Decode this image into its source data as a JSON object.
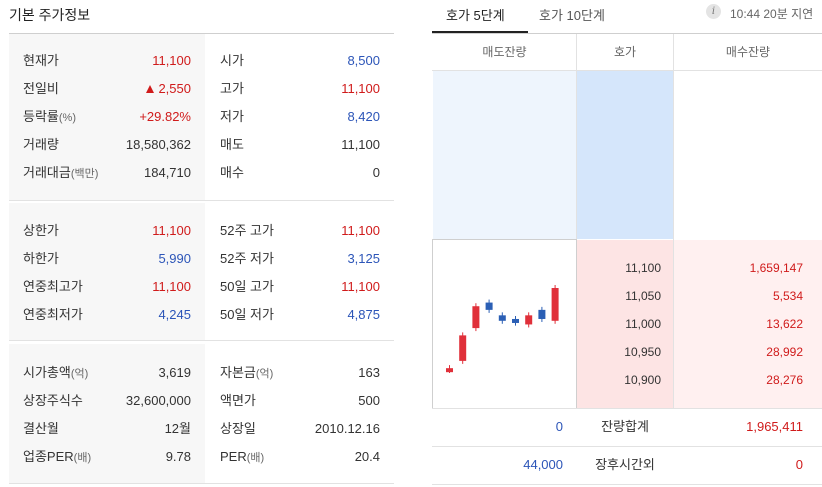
{
  "left": {
    "title": "기본 주가정보",
    "section1": [
      {
        "label": "현재가",
        "value": "11,100",
        "color": "red",
        "label2": "시가",
        "value2": "8,500",
        "color2": "blue"
      },
      {
        "label": "전일비",
        "value": "2,550",
        "color": "red",
        "arrow": "up",
        "label2": "고가",
        "value2": "11,100",
        "color2": "red"
      },
      {
        "label": "등락률",
        "unit": "(%)",
        "value": "+29.82%",
        "color": "red",
        "label2": "저가",
        "value2": "8,420",
        "color2": "blue"
      },
      {
        "label": "거래량",
        "value": "18,580,362",
        "color": "dark",
        "label2": "매도",
        "value2": "11,100",
        "color2": "dark"
      },
      {
        "label": "거래대금",
        "unit": "(백만)",
        "value": "184,710",
        "color": "dark",
        "label2": "매수",
        "value2": "0",
        "color2": "dark"
      }
    ],
    "section2": [
      {
        "label": "상한가",
        "value": "11,100",
        "color": "red",
        "label2": "52주 고가",
        "value2": "11,100",
        "color2": "red"
      },
      {
        "label": "하한가",
        "value": "5,990",
        "color": "blue",
        "label2": "52주 저가",
        "value2": "3,125",
        "color2": "blue"
      },
      {
        "label": "연중최고가",
        "value": "11,100",
        "color": "red",
        "label2": "50일 고가",
        "value2": "11,100",
        "color2": "red"
      },
      {
        "label": "연중최저가",
        "value": "4,245",
        "color": "blue",
        "label2": "50일 저가",
        "value2": "4,875",
        "color2": "blue"
      }
    ],
    "section3": [
      {
        "label": "시가총액",
        "unit": "(억)",
        "value": "3,619",
        "color": "dark",
        "label2": "자본금",
        "unit2": "(억)",
        "value2": "163",
        "color2": "dark"
      },
      {
        "label": "상장주식수",
        "value": "32,600,000",
        "color": "dark",
        "label2": "액면가",
        "value2": "500",
        "color2": "dark"
      },
      {
        "label": "결산월",
        "value": "12월",
        "color": "dark",
        "label2": "상장일",
        "value2": "2010.12.16",
        "color2": "dark"
      },
      {
        "label": "업종PER",
        "unit": "(배)",
        "value": "9.78",
        "color": "dark",
        "label2": "PER",
        "unit2": "(배)",
        "value2": "20.4",
        "color2": "dark"
      }
    ]
  },
  "right": {
    "tabs": [
      {
        "label": "호가 5단계",
        "active": true
      },
      {
        "label": "호가 10단계",
        "active": false
      }
    ],
    "info_icon": "info-icon",
    "timestamp": "10:44 20분 지연",
    "headers": {
      "ask_qty": "매도잔량",
      "price": "호가",
      "bid_qty": "매수잔량"
    },
    "bids": [
      {
        "price": "11,100",
        "qty": "1,659,147"
      },
      {
        "price": "11,050",
        "qty": "5,534"
      },
      {
        "price": "11,000",
        "qty": "13,622"
      },
      {
        "price": "10,950",
        "qty": "28,992"
      },
      {
        "price": "10,900",
        "qty": "28,276"
      }
    ],
    "summary": [
      {
        "left": "0",
        "label": "잔량합계",
        "right": "1,965,411"
      },
      {
        "left": "44,000",
        "label": "장후시간외",
        "right": "0"
      }
    ],
    "mini_chart": {
      "type": "candlestick",
      "up_color": "#e0303a",
      "down_color": "#2b5fb5",
      "candles": [
        {
          "dir": "up",
          "open": 7.9,
          "close": 8.0
        },
        {
          "dir": "up",
          "open": 8.4,
          "close": 9.8
        },
        {
          "dir": "up",
          "open": 10.2,
          "close": 11.4
        },
        {
          "dir": "down",
          "open": 11.6,
          "close": 11.2
        },
        {
          "dir": "down",
          "open": 10.9,
          "close": 10.6
        },
        {
          "dir": "down",
          "open": 10.7,
          "close": 10.5
        },
        {
          "dir": "up",
          "open": 10.4,
          "close": 10.9
        },
        {
          "dir": "down",
          "open": 11.2,
          "close": 10.7
        },
        {
          "dir": "up",
          "open": 10.6,
          "close": 12.4
        }
      ]
    }
  }
}
